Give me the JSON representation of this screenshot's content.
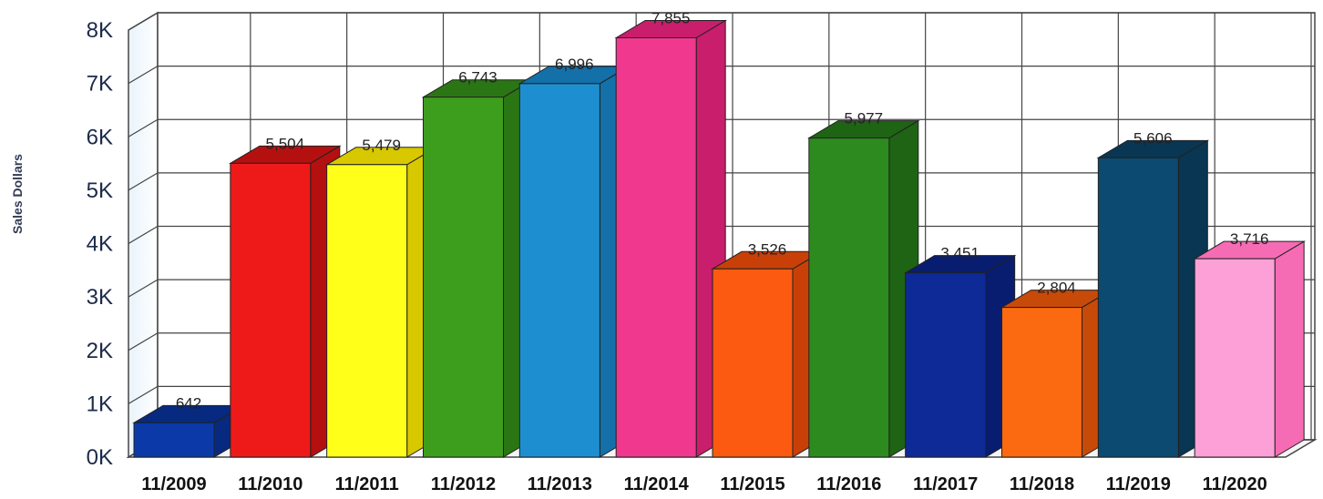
{
  "chart_data": {
    "type": "bar",
    "title": "",
    "xlabel": "",
    "ylabel": "Sales Dollars",
    "ylim": [
      0,
      8000
    ],
    "yticks": [
      0,
      1000,
      2000,
      3000,
      4000,
      5000,
      6000,
      7000,
      8000
    ],
    "ytick_labels": [
      "0K",
      "1K",
      "2K",
      "3K",
      "4K",
      "5K",
      "6K",
      "7K",
      "8K"
    ],
    "grid": true,
    "legend": "none",
    "categories": [
      "11/2009",
      "11/2010",
      "11/2011",
      "11/2012",
      "11/2013",
      "11/2014",
      "11/2015",
      "11/2016",
      "11/2017",
      "11/2018",
      "11/2019",
      "11/2020"
    ],
    "values": [
      642,
      5504,
      5479,
      6743,
      6996,
      7855,
      3526,
      5977,
      3451,
      2804,
      5606,
      3716
    ],
    "value_labels": [
      "642",
      "5,504",
      "5,479",
      "6,743",
      "6,996",
      "7,855",
      "3,526",
      "5,977",
      "3,451",
      "2,804",
      "5,606",
      "3,716"
    ],
    "colors": [
      "#0b3aa8",
      "#ee1a1a",
      "#ffff1a",
      "#3d9e1e",
      "#1d8fd0",
      "#f0388e",
      "#fb5a10",
      "#2d8a1f",
      "#0e2a96",
      "#fb6a10",
      "#0c4a72",
      "#fda0d8"
    ],
    "side_colors": [
      "#072a80",
      "#b51010",
      "#d8c800",
      "#2b7614",
      "#1370a8",
      "#c81e6c",
      "#c84008",
      "#1e6414",
      "#081d70",
      "#c84a08",
      "#083653",
      "#f66cb4"
    ]
  }
}
